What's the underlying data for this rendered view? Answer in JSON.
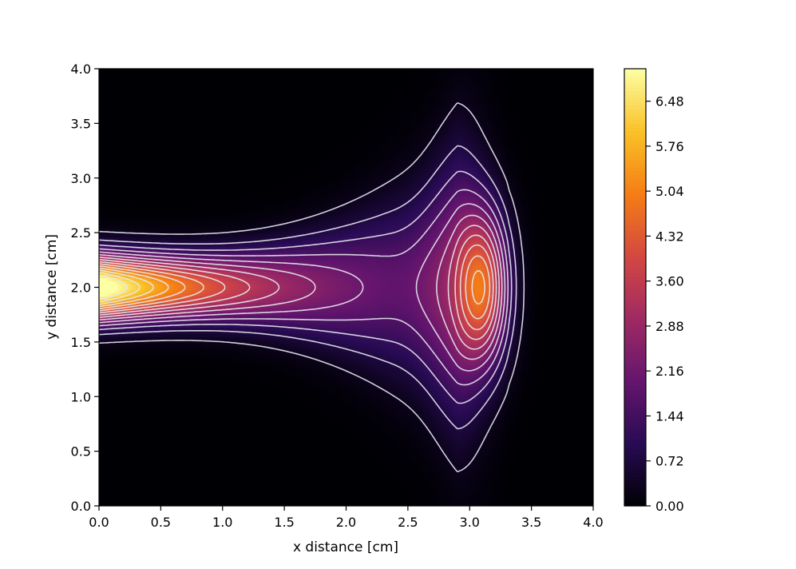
{
  "chart_data": {
    "type": "heatmap",
    "title": "",
    "xlabel": "x distance [cm]",
    "ylabel": "y distance [cm]",
    "xlim": [
      0.0,
      4.0
    ],
    "ylim": [
      0.0,
      4.0
    ],
    "x_ticks": [
      "0.0",
      "0.5",
      "1.0",
      "1.5",
      "2.0",
      "2.5",
      "3.0",
      "3.5",
      "4.0"
    ],
    "y_ticks": [
      "0.0",
      "0.5",
      "1.0",
      "1.5",
      "2.0",
      "2.5",
      "3.0",
      "3.5",
      "4.0"
    ],
    "colorbar": {
      "colormap": "inferno",
      "range": [
        0.0,
        7.0
      ],
      "ticks": [
        "0.00",
        "0.72",
        "1.44",
        "2.16",
        "2.88",
        "3.60",
        "4.32",
        "5.04",
        "5.76",
        "6.48"
      ]
    },
    "contour_color": "#e8e8f0",
    "grid": false,
    "features": [
      {
        "x_center": 0.1,
        "y_center": 2.0,
        "peak_value": 7.0
      },
      {
        "x_center": 3.1,
        "y_center": 2.0,
        "peak_value": 4.3
      }
    ]
  }
}
